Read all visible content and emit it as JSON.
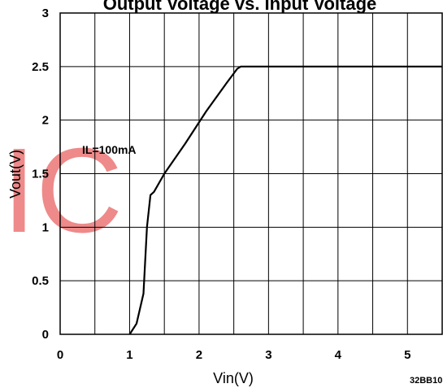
{
  "chart_data": {
    "type": "line",
    "title": "Output Voltage vs. Input Voltage",
    "xlabel": "Vin(V)",
    "ylabel": "Vout(V)",
    "xlim": [
      0,
      5.5
    ],
    "ylim": [
      0,
      3
    ],
    "grid": true,
    "x_ticks": [
      "0",
      "1",
      "2",
      "3",
      "4",
      "5"
    ],
    "y_ticks": [
      "0",
      "0.5",
      "1",
      "1.5",
      "2",
      "2.5",
      "3"
    ],
    "annotation": "IL=100mA",
    "figure_code": "32BB10",
    "watermark": "IC",
    "series": [
      {
        "x": [
          1.0,
          1.1,
          1.2,
          1.25,
          1.3,
          1.35,
          1.5,
          1.8,
          2.1,
          2.4,
          2.55,
          2.6,
          3.0,
          4.0,
          5.0,
          5.5
        ],
        "y": [
          0.0,
          0.1,
          0.38,
          1.0,
          1.3,
          1.33,
          1.5,
          1.78,
          2.08,
          2.35,
          2.48,
          2.5,
          2.5,
          2.5,
          2.5,
          2.5
        ]
      }
    ]
  }
}
